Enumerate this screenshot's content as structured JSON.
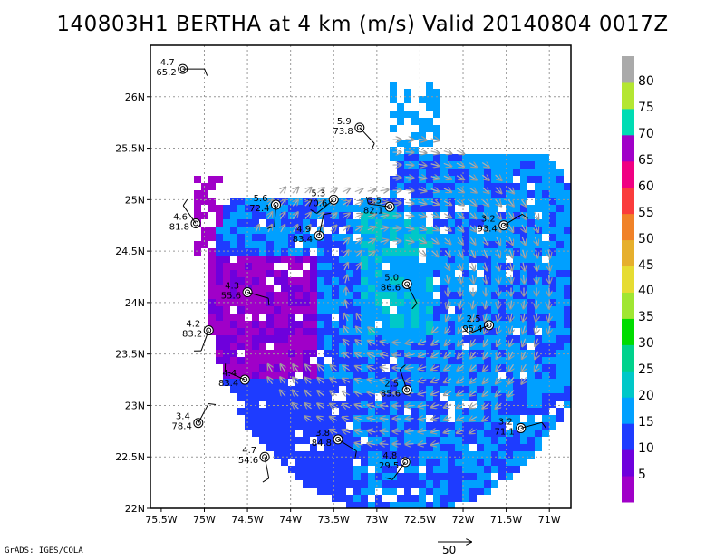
{
  "title": "140803H1 BERTHA at 4 km (m/s) Valid 20140804 0017Z",
  "credit": "GrADS: IGES/COLA",
  "scale_arrow_label": "50",
  "axes": {
    "lon_ticks": [
      "75.5W",
      "75W",
      "74.5W",
      "74W",
      "73.5W",
      "73W",
      "72.5W",
      "72W",
      "71.5W",
      "71W"
    ],
    "lat_ticks": [
      "22N",
      "22.5N",
      "23N",
      "23.5N",
      "24N",
      "24.5N",
      "25N",
      "25.5N",
      "26N"
    ]
  },
  "colorbar": {
    "labels": [
      "5",
      "10",
      "15",
      "20",
      "25",
      "30",
      "35",
      "40",
      "45",
      "50",
      "55",
      "60",
      "65",
      "70",
      "75",
      "80"
    ],
    "colors": [
      "#a000c8",
      "#6e00dc",
      "#1e3cff",
      "#00a0ff",
      "#00c8c8",
      "#00d28c",
      "#00dc00",
      "#a0e632",
      "#e6dc32",
      "#e6af2d",
      "#f08228",
      "#fa3c3c",
      "#f00082",
      "#a000c8",
      "#00dcb4",
      "#b4e632",
      "#aaaaaa"
    ]
  },
  "stations": [
    {
      "lon": -75.25,
      "lat": 26.27,
      "top": "4.7",
      "bottom": "65.2"
    },
    {
      "lon": -73.2,
      "lat": 25.7,
      "top": "5.9",
      "bottom": "73.8"
    },
    {
      "lon": -74.17,
      "lat": 24.95,
      "top": "5.6",
      "bottom": "72.4"
    },
    {
      "lon": -73.5,
      "lat": 25.0,
      "top": "5.3",
      "bottom": "70.6"
    },
    {
      "lon": -72.85,
      "lat": 24.93,
      "top": "5.5",
      "bottom": "82.1"
    },
    {
      "lon": -75.1,
      "lat": 24.77,
      "top": "4.6",
      "bottom": "81.8"
    },
    {
      "lon": -73.67,
      "lat": 24.65,
      "top": "4.9",
      "bottom": "83.4"
    },
    {
      "lon": -71.53,
      "lat": 24.75,
      "top": "3.2",
      "bottom": "93.4"
    },
    {
      "lon": -74.5,
      "lat": 24.1,
      "top": "4.3",
      "bottom": "55.6"
    },
    {
      "lon": -72.65,
      "lat": 24.18,
      "top": "5.0",
      "bottom": "86.6"
    },
    {
      "lon": -74.95,
      "lat": 23.73,
      "top": "4.2",
      "bottom": "83.2"
    },
    {
      "lon": -71.7,
      "lat": 23.78,
      "top": "2.5",
      "bottom": "95.4"
    },
    {
      "lon": -74.53,
      "lat": 23.25,
      "top": "4.4",
      "bottom": "83.4"
    },
    {
      "lon": -72.65,
      "lat": 23.15,
      "top": "2.5",
      "bottom": "85.6"
    },
    {
      "lon": -75.07,
      "lat": 22.83,
      "top": "3.4",
      "bottom": "78.4"
    },
    {
      "lon": -71.33,
      "lat": 22.78,
      "top": "3.2",
      "bottom": "71.1"
    },
    {
      "lon": -73.45,
      "lat": 22.67,
      "top": "3.8",
      "bottom": "84.8"
    },
    {
      "lon": -74.3,
      "lat": 22.5,
      "top": "4.7",
      "bottom": "54.6"
    },
    {
      "lon": -72.67,
      "lat": 22.45,
      "top": "4.8",
      "bottom": "29.5"
    }
  ]
}
